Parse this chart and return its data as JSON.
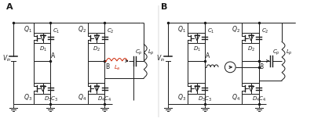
{
  "fig_width": 4.0,
  "fig_height": 1.56,
  "dpi": 100,
  "bg_color": "#ffffff",
  "line_color": "#1a1a1a",
  "red_color": "#cc2200",
  "label_Vin": "$V_{in}$",
  "label_Q1": "$Q_1$",
  "label_Q2": "$Q_2$",
  "label_Q3": "$Q_3$",
  "label_Q4": "$Q_4$",
  "label_D1": "$D_1$",
  "label_D2": "$D_2$",
  "label_D3": "$D_3$",
  "label_D4": "$D_4$",
  "label_C1": "$C_1$",
  "label_C2": "$C_2$",
  "label_C3": "$C_3$",
  "label_C4": "$C_4$",
  "label_La": "$L_a$",
  "label_Cp": "$C_p$",
  "label_Lp": "$L_p$",
  "label_panel_A": "A",
  "label_panel_B": "B",
  "label_nodeA": "A",
  "label_nodeB": "B",
  "fontsize_small": 5.5,
  "fontsize_panel": 8
}
